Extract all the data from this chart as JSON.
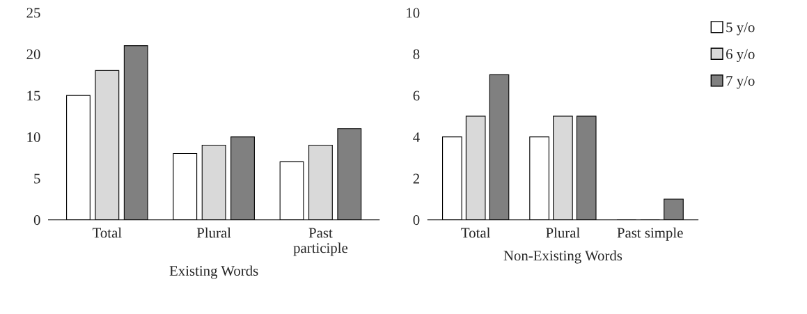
{
  "chart_data": [
    {
      "type": "bar",
      "xlabel": "Existing Words",
      "categories": [
        "Total",
        "Plural",
        "Past\nparticiple"
      ],
      "ylim": [
        0,
        25
      ],
      "yticks": [
        0,
        5,
        10,
        15,
        20,
        25
      ],
      "grid": false,
      "legend": false,
      "series": [
        {
          "color": "#ffffff",
          "values": [
            15,
            8,
            7
          ]
        },
        {
          "color": "#d9d9d9",
          "values": [
            18,
            9,
            9
          ]
        },
        {
          "color": "#808080",
          "values": [
            21,
            10,
            11
          ]
        }
      ]
    },
    {
      "type": "bar",
      "xlabel": "Non-Existing Words",
      "categories": [
        "Total",
        "Plural",
        "Past simple"
      ],
      "ylim": [
        0,
        10
      ],
      "yticks": [
        0,
        2,
        4,
        6,
        8,
        10
      ],
      "grid": false,
      "legend": "top right",
      "series": [
        {
          "name": "5 y/o",
          "color": "#ffffff",
          "values": [
            4,
            4,
            0
          ]
        },
        {
          "name": "6 y/o",
          "color": "#d9d9d9",
          "values": [
            5,
            5,
            0
          ]
        },
        {
          "name": "7 y/o",
          "color": "#808080",
          "values": [
            7,
            5,
            1
          ]
        }
      ]
    }
  ]
}
